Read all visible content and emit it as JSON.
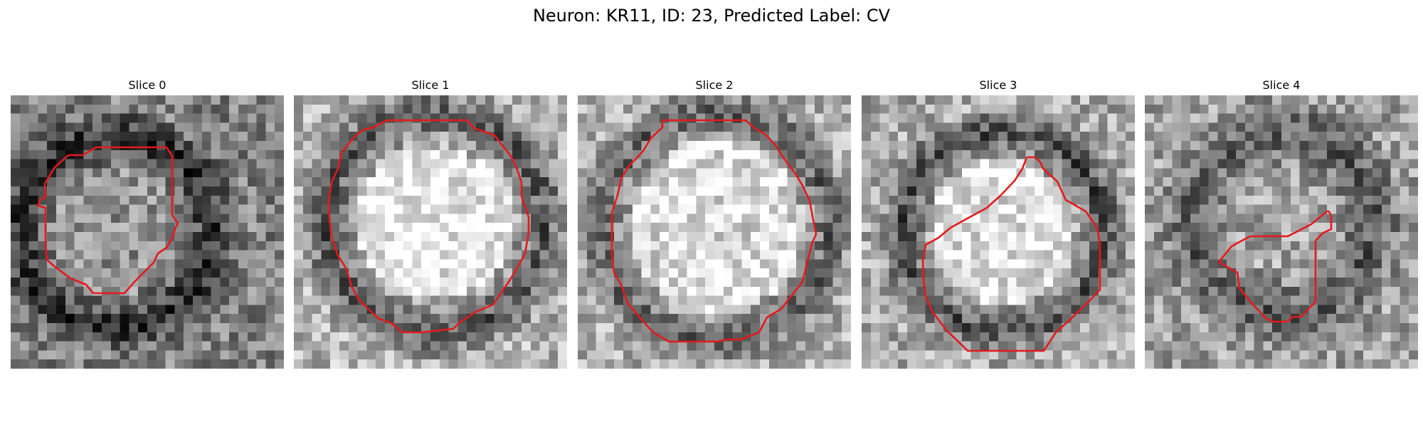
{
  "figure_title": "Neuron: KR11, ID: 23, Predicted Label: CV",
  "colors": {
    "contour": "#e31a1c",
    "background": "#ffffff",
    "colormap": "gray"
  },
  "slices": [
    {
      "title": "Slice 0",
      "contour_shape": "roughly round outline, offset left"
    },
    {
      "title": "Slice 1",
      "contour_shape": "large round outline"
    },
    {
      "title": "Slice 2",
      "contour_shape": "large octagonal outline"
    },
    {
      "title": "Slice 3",
      "contour_shape": "tilted round outline, lower right"
    },
    {
      "title": "Slice 4",
      "contour_shape": "small irregular outline"
    }
  ]
}
